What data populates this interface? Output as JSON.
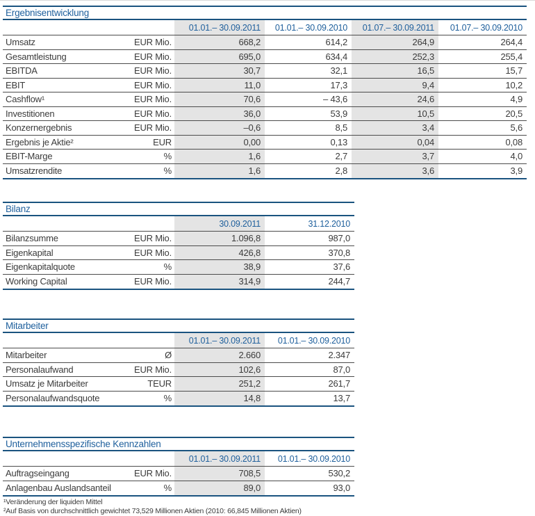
{
  "colors": {
    "accent_blue_text": "#1e5f9c",
    "blue_rule": "#1a537f",
    "row_rule": "#4b4b4b",
    "shaded_column": "#e4e4e4",
    "body_text": "#3b3b3b"
  },
  "tables": [
    {
      "title": "Ergebnisentwicklung",
      "columns": [
        "01.01.– 30.09.2011",
        "01.01.– 30.09.2010",
        "01.07.– 30.09.2011",
        "01.07.– 30.09.2010"
      ],
      "rows": [
        {
          "label": "Umsatz",
          "unit": "EUR Mio.",
          "values": [
            "668,2",
            "614,2",
            "264,9",
            "264,4"
          ]
        },
        {
          "label": "Gesamtleistung",
          "unit": "EUR Mio.",
          "values": [
            "695,0",
            "634,4",
            "252,3",
            "255,4"
          ]
        },
        {
          "label": "EBITDA",
          "unit": "EUR Mio.",
          "values": [
            "30,7",
            "32,1",
            "16,5",
            "15,7"
          ]
        },
        {
          "label": "EBIT",
          "unit": "EUR Mio.",
          "values": [
            "11,0",
            "17,3",
            "9,4",
            "10,2"
          ]
        },
        {
          "label": "Cashflow¹",
          "unit": "EUR Mio.",
          "values": [
            "70,6",
            "– 43,6",
            "24,6",
            "4,9"
          ]
        },
        {
          "label": "Investitionen",
          "unit": "EUR Mio.",
          "values": [
            "36,0",
            "53,9",
            "10,5",
            "20,5"
          ]
        },
        {
          "label": "Konzernergebnis",
          "unit": "EUR Mio.",
          "values": [
            "–0,6",
            "8,5",
            "3,4",
            "5,6"
          ]
        },
        {
          "label": "Ergebnis je Aktie²",
          "unit": "EUR",
          "values": [
            "0,00",
            "0,13",
            "0,04",
            "0,08"
          ]
        },
        {
          "label": "EBIT-Marge",
          "unit": "%",
          "values": [
            "1,6",
            "2,7",
            "3,7",
            "4,0"
          ]
        },
        {
          "label": "Umsatzrendite",
          "unit": "%",
          "values": [
            "1,6",
            "2,8",
            "3,6",
            "3,9"
          ]
        }
      ]
    },
    {
      "title": "Bilanz",
      "columns": [
        "30.09.2011",
        "31.12.2010"
      ],
      "rows": [
        {
          "label": "Bilanzsumme",
          "unit": "EUR Mio.",
          "values": [
            "1.096,8",
            "987,0"
          ]
        },
        {
          "label": "Eigenkapital",
          "unit": "EUR Mio.",
          "values": [
            "426,8",
            "370,8"
          ]
        },
        {
          "label": "Eigenkapitalquote",
          "unit": "%",
          "values": [
            "38,9",
            "37,6"
          ]
        },
        {
          "label": "Working Capital",
          "unit": "EUR Mio.",
          "values": [
            "314,9",
            "244,7"
          ]
        }
      ]
    },
    {
      "title": "Mitarbeiter",
      "columns": [
        "01.01.– 30.09.2011",
        "01.01.– 30.09.2010"
      ],
      "rows": [
        {
          "label": "Mitarbeiter",
          "unit": "Ø",
          "values": [
            "2.660",
            "2.347"
          ]
        },
        {
          "label": "Personalaufwand",
          "unit": "EUR Mio.",
          "values": [
            "102,6",
            "87,0"
          ]
        },
        {
          "label": "Umsatz je Mitarbeiter",
          "unit": "TEUR",
          "values": [
            "251,2",
            "261,7"
          ]
        },
        {
          "label": "Personalaufwandsquote",
          "unit": "%",
          "values": [
            "14,8",
            "13,7"
          ]
        }
      ]
    },
    {
      "title": "Unternehmensspezifische Kennzahlen",
      "columns": [
        "01.01.– 30.09.2011",
        "01.01.– 30.09.2010"
      ],
      "rows": [
        {
          "label": "Auftragseingang",
          "unit": "EUR Mio.",
          "values": [
            "708,5",
            "530,2"
          ]
        },
        {
          "label": "Anlagenbau Auslandsanteil",
          "unit": "%",
          "values": [
            "89,0",
            "93,0"
          ]
        }
      ]
    }
  ],
  "footnotes": [
    "¹Veränderung der liquiden Mittel",
    "²Auf Basis von durchschnittlich gewichtet 73,529 Millionen Aktien (2010: 66,845 Millionen Aktien)"
  ]
}
